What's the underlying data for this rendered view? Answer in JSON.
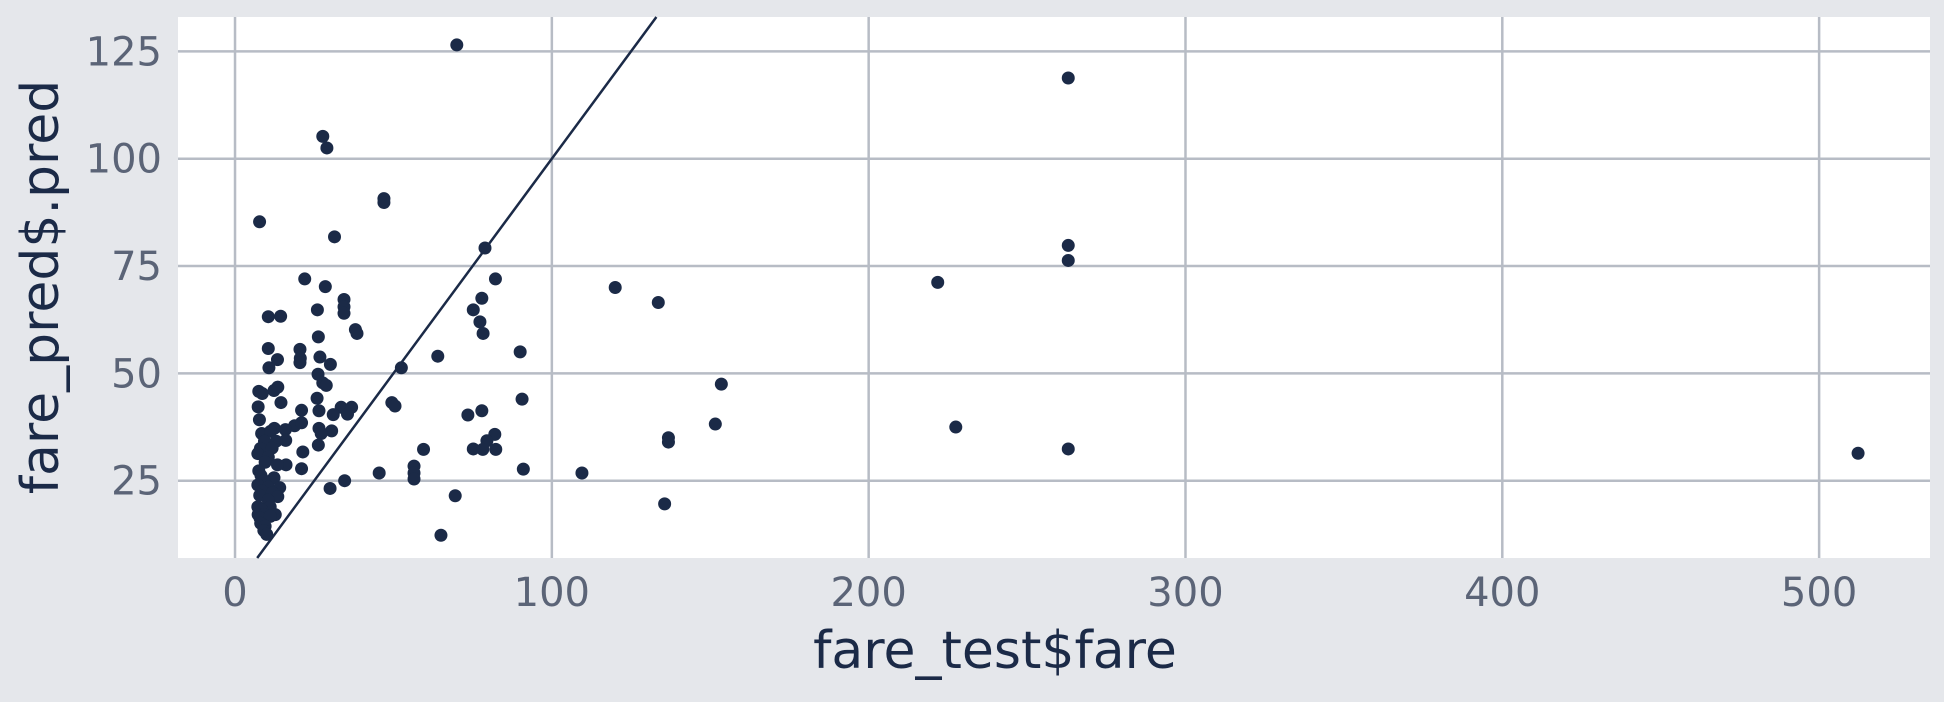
{
  "chart_data": {
    "type": "scatter",
    "xlabel": "fare_test$fare",
    "ylabel": "fare_pred$.pred",
    "xlim": [
      -18,
      535
    ],
    "ylim": [
      7,
      133
    ],
    "x_ticks": [
      0,
      100,
      200,
      300,
      400,
      500
    ],
    "y_ticks": [
      25,
      50,
      75,
      100,
      125
    ],
    "x_tick_labels": [
      "0",
      "100",
      "200",
      "300",
      "400",
      "500"
    ],
    "y_tick_labels": [
      "25",
      "50",
      "75",
      "100",
      "125"
    ],
    "grid": true,
    "legend": "none",
    "reference_line": {
      "slope": 1,
      "intercept": 0
    },
    "series": [
      {
        "points": [
          [
            70,
            126.5
          ],
          [
            263,
            118.8
          ],
          [
            27.7,
            105.2
          ],
          [
            29,
            102.5
          ],
          [
            47,
            90.7
          ],
          [
            47,
            89.8
          ],
          [
            7.75,
            85.3
          ],
          [
            31.4,
            81.8
          ],
          [
            78.9,
            79.2
          ],
          [
            263,
            79.8
          ],
          [
            263,
            76.3
          ],
          [
            221.8,
            71.2
          ],
          [
            22,
            72
          ],
          [
            82.2,
            72
          ],
          [
            28.5,
            70.2
          ],
          [
            120,
            70
          ],
          [
            34.4,
            67.2
          ],
          [
            77.9,
            67.5
          ],
          [
            133.6,
            66.5
          ],
          [
            34.4,
            65.5
          ],
          [
            26,
            64.8
          ],
          [
            75.2,
            64.8
          ],
          [
            34.4,
            64
          ],
          [
            10.5,
            63.2
          ],
          [
            14.4,
            63.3
          ],
          [
            77.3,
            62
          ],
          [
            38,
            60.2
          ],
          [
            38.5,
            59.3
          ],
          [
            78.3,
            59.3
          ],
          [
            26.3,
            58.5
          ],
          [
            10.5,
            55.8
          ],
          [
            20.5,
            55.6
          ],
          [
            20.6,
            53.5
          ],
          [
            90,
            55
          ],
          [
            26.8,
            53.8
          ],
          [
            13.4,
            53.2
          ],
          [
            64,
            54
          ],
          [
            20.5,
            52.5
          ],
          [
            30.1,
            52.1
          ],
          [
            52.5,
            51.3
          ],
          [
            10.7,
            51.3
          ],
          [
            26.2,
            49.8
          ],
          [
            153.5,
            47.5
          ],
          [
            27.7,
            47.8
          ],
          [
            28.8,
            47.2
          ],
          [
            12.3,
            46
          ],
          [
            13.5,
            46.8
          ],
          [
            7.5,
            45.8
          ],
          [
            8.6,
            45.3
          ],
          [
            25.9,
            44.2
          ],
          [
            90.6,
            44
          ],
          [
            14.5,
            43.2
          ],
          [
            49.5,
            43.2
          ],
          [
            50.5,
            42.4
          ],
          [
            7.3,
            42.2
          ],
          [
            33.5,
            42.1
          ],
          [
            36.8,
            42.1
          ],
          [
            77.9,
            41.3
          ],
          [
            21,
            41.4
          ],
          [
            26.5,
            41.3
          ],
          [
            35.5,
            40.5
          ],
          [
            31,
            40.4
          ],
          [
            73.5,
            40.3
          ],
          [
            18.8,
            37.8
          ],
          [
            7.7,
            39.2
          ],
          [
            12.4,
            37.2
          ],
          [
            15.9,
            36.9
          ],
          [
            21,
            38.5
          ],
          [
            26.5,
            37.2
          ],
          [
            151.6,
            38.2
          ],
          [
            227.5,
            37.5
          ],
          [
            30.5,
            36.6
          ],
          [
            8.4,
            36
          ],
          [
            11.2,
            36.5
          ],
          [
            27.2,
            36
          ],
          [
            82,
            35.8
          ],
          [
            136.8,
            35
          ],
          [
            9.3,
            34.2
          ],
          [
            16,
            34.4
          ],
          [
            13,
            34.2
          ],
          [
            79.5,
            34.3
          ],
          [
            136.8,
            34
          ],
          [
            8,
            32.5
          ],
          [
            11.7,
            32.6
          ],
          [
            26.3,
            33.3
          ],
          [
            59.5,
            32.3
          ],
          [
            75.2,
            32.4
          ],
          [
            78.2,
            32.3
          ],
          [
            82.3,
            32.3
          ],
          [
            263,
            32.4
          ],
          [
            7.2,
            31.3
          ],
          [
            10.5,
            30.5
          ],
          [
            21.4,
            31.7
          ],
          [
            9.5,
            29.3
          ],
          [
            16.1,
            28.7
          ],
          [
            13.4,
            28.7
          ],
          [
            56.5,
            28.4
          ],
          [
            91,
            27.7
          ],
          [
            7.5,
            27.3
          ],
          [
            21,
            27.8
          ],
          [
            45.5,
            26.8
          ],
          [
            56.5,
            26.8
          ],
          [
            109.5,
            26.8
          ],
          [
            8.2,
            26.2
          ],
          [
            12.3,
            25.7
          ],
          [
            9.3,
            25
          ],
          [
            34.6,
            25
          ],
          [
            56.5,
            25.4
          ],
          [
            512.3,
            31.4
          ],
          [
            7.2,
            24
          ],
          [
            10.5,
            23.5
          ],
          [
            14.1,
            23.4
          ],
          [
            30,
            23.2
          ],
          [
            8.6,
            22.6
          ],
          [
            11.8,
            22.2
          ],
          [
            69.5,
            21.5
          ],
          [
            7.8,
            21.6
          ],
          [
            13.5,
            21.3
          ],
          [
            10.5,
            20.5
          ],
          [
            135.6,
            19.6
          ],
          [
            7.2,
            18.9
          ],
          [
            11.1,
            18.9
          ],
          [
            8.5,
            18.2
          ],
          [
            7.3,
            17.1
          ],
          [
            9.2,
            17.1
          ],
          [
            12.7,
            17.1
          ],
          [
            7.9,
            16.3
          ],
          [
            11.1,
            16.7
          ],
          [
            8.1,
            15.1
          ],
          [
            9.5,
            14.4
          ],
          [
            9.1,
            13.4
          ],
          [
            10,
            12.5
          ],
          [
            65,
            12.3
          ]
        ]
      }
    ],
    "colors": {
      "panel": "#ffffff",
      "background": "#e5e7eb",
      "grid": "#b7bcc5",
      "point": "#1b2a47",
      "line": "#1b2a47",
      "tick_text": "#5b6477",
      "title_text": "#1b2a47"
    }
  }
}
